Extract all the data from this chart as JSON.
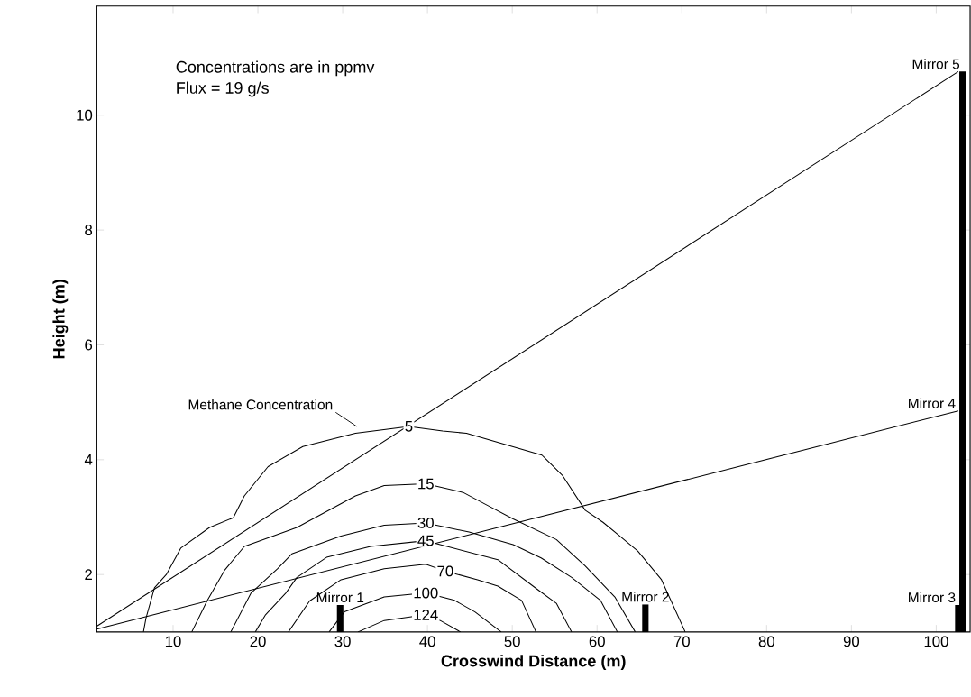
{
  "chart_data": {
    "type": "line",
    "xlabel": "Crosswind Distance (m)",
    "ylabel": "Height (m)",
    "xlim": [
      1,
      104
    ],
    "ylim": [
      1,
      11.9
    ],
    "xticks": [
      10,
      20,
      30,
      40,
      50,
      60,
      70,
      80,
      90,
      100
    ],
    "yticks": [
      2,
      4,
      6,
      8,
      10
    ],
    "annotations": [
      "Concentrations are in ppmv",
      "Flux = 19 g/s",
      {
        "text": "Methane Concentration",
        "x": 31.5,
        "y": 4.46
      },
      {
        "text": "Mirror 1",
        "x": 29.7,
        "y": 1.47
      },
      {
        "text": "Mirror 2",
        "x": 65.7,
        "y": 1.48
      },
      {
        "text": "Mirror 3",
        "x": 102.6,
        "y": 1.47
      },
      {
        "text": "Mirror 4",
        "x": 102.6,
        "y": 4.85
      },
      {
        "text": "Mirror 5",
        "x": 103.1,
        "y": 10.76
      }
    ],
    "series": [
      {
        "name": "5",
        "color": "#000000",
        "x": [
          6.5,
          6.8,
          7.8,
          9.2,
          10.9,
          14.3,
          17.1,
          18.4,
          21.2,
          25.3,
          31.5,
          37.8,
          41.8,
          44.6,
          53.5,
          55.9,
          58.6,
          60.7,
          62.6,
          64.8,
          67.6,
          70.4
        ],
        "values": [
          1.0,
          1.24,
          1.77,
          2.0,
          2.46,
          2.82,
          2.99,
          3.37,
          3.88,
          4.23,
          4.46,
          4.58,
          4.5,
          4.46,
          4.08,
          3.73,
          3.12,
          2.91,
          2.68,
          2.41,
          1.91,
          1.0
        ]
      },
      {
        "name": "15",
        "color": "#000000",
        "x": [
          12.2,
          14.0,
          16.1,
          18.4,
          24.6,
          31.5,
          34.9,
          39.8,
          44.2,
          47.0,
          50.1,
          55.2,
          58.6,
          62.1,
          64.5
        ],
        "values": [
          1.0,
          1.54,
          2.08,
          2.49,
          2.82,
          3.37,
          3.55,
          3.58,
          3.43,
          3.21,
          2.97,
          2.61,
          2.15,
          1.61,
          1.0
        ]
      },
      {
        "name": "30",
        "color": "#000000",
        "x": [
          16.8,
          19.2,
          22.3,
          24.0,
          29.8,
          34.9,
          39.8,
          44.9,
          50.1,
          53.4,
          57.0,
          60.4,
          62.4
        ],
        "values": [
          1.0,
          1.68,
          2.1,
          2.36,
          2.67,
          2.86,
          2.9,
          2.74,
          2.52,
          2.29,
          1.95,
          1.55,
          1.0
        ]
      },
      {
        "name": "45",
        "color": "#000000",
        "x": [
          19.7,
          20.9,
          23.3,
          24.6,
          28.1,
          33.3,
          39.8,
          41.5,
          48.3,
          52.8,
          55.2,
          57.0
        ],
        "values": [
          1.0,
          1.3,
          1.68,
          1.95,
          2.3,
          2.49,
          2.59,
          2.52,
          2.26,
          1.76,
          1.5,
          1.0
        ]
      },
      {
        "name": "70",
        "color": "#000000",
        "x": [
          23.6,
          26.1,
          29.8,
          34.9,
          39.8,
          42.1,
          45.9,
          48.3,
          51.1,
          52.8
        ],
        "values": [
          1.0,
          1.54,
          1.91,
          2.1,
          2.18,
          2.06,
          1.91,
          1.8,
          1.55,
          1.0
        ]
      },
      {
        "name": "100",
        "color": "#000000",
        "x": [
          28.4,
          30.2,
          34.9,
          39.8,
          43.2,
          45.6,
          48.7
        ],
        "values": [
          1.0,
          1.35,
          1.61,
          1.68,
          1.55,
          1.35,
          1.0
        ]
      },
      {
        "name": "124",
        "color": "#000000",
        "x": [
          31.8,
          34.9,
          39.8,
          41.5,
          43.9
        ],
        "values": [
          1.0,
          1.2,
          1.3,
          1.2,
          1.0
        ]
      },
      {
        "color": "#000000",
        "x": [
          1,
          102.6
        ],
        "values": [
          1.1,
          10.76
        ]
      },
      {
        "color": "#000000",
        "x": [
          1,
          102.6
        ],
        "values": [
          1.05,
          4.85
        ]
      },
      {
        "type": "bar",
        "color": "#000000",
        "x": [
          29.7,
          65.7,
          102.6,
          103.1
        ],
        "base": [
          1,
          1,
          1,
          1
        ],
        "values": [
          0.47,
          0.48,
          0.47,
          9.76
        ]
      }
    ]
  }
}
